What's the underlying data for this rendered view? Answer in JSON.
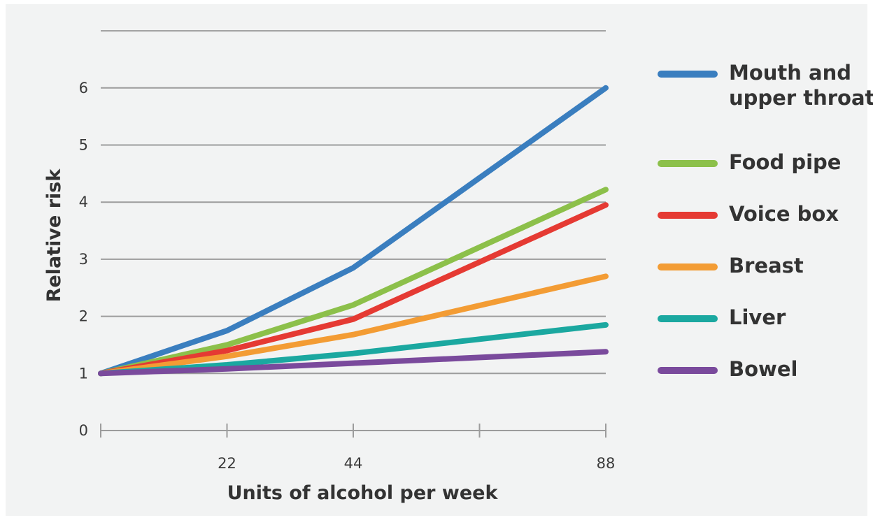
{
  "chart_data": {
    "type": "line",
    "title": "",
    "xlabel": "Units of alcohol per week",
    "ylabel": "Relative risk",
    "x": [
      0,
      22,
      44,
      88
    ],
    "xticks_labeled": [
      "22",
      "44",
      "88"
    ],
    "xlim": [
      0,
      88
    ],
    "ylim": [
      0,
      7
    ],
    "yticks": [
      "0",
      "1",
      "2",
      "3",
      "4",
      "5",
      "6"
    ],
    "grid": "horizontal",
    "legend_position": "right",
    "series": [
      {
        "name": "Mouth and\nupper throat",
        "color": "#3a7ebf",
        "values": [
          1,
          1.75,
          2.85,
          6.0
        ]
      },
      {
        "name": "Food pipe",
        "color": "#8cc04a",
        "values": [
          1,
          1.5,
          2.2,
          4.22
        ]
      },
      {
        "name": "Voice box",
        "color": "#e53a33",
        "values": [
          1,
          1.4,
          1.95,
          3.95
        ]
      },
      {
        "name": "Breast",
        "color": "#f39c34",
        "values": [
          1,
          1.3,
          1.68,
          2.7
        ]
      },
      {
        "name": "Liver",
        "color": "#1ba8a0",
        "values": [
          1,
          1.15,
          1.35,
          1.85
        ]
      },
      {
        "name": "Bowel",
        "color": "#7a4a9c",
        "values": [
          1,
          1.08,
          1.18,
          1.38
        ]
      }
    ]
  }
}
